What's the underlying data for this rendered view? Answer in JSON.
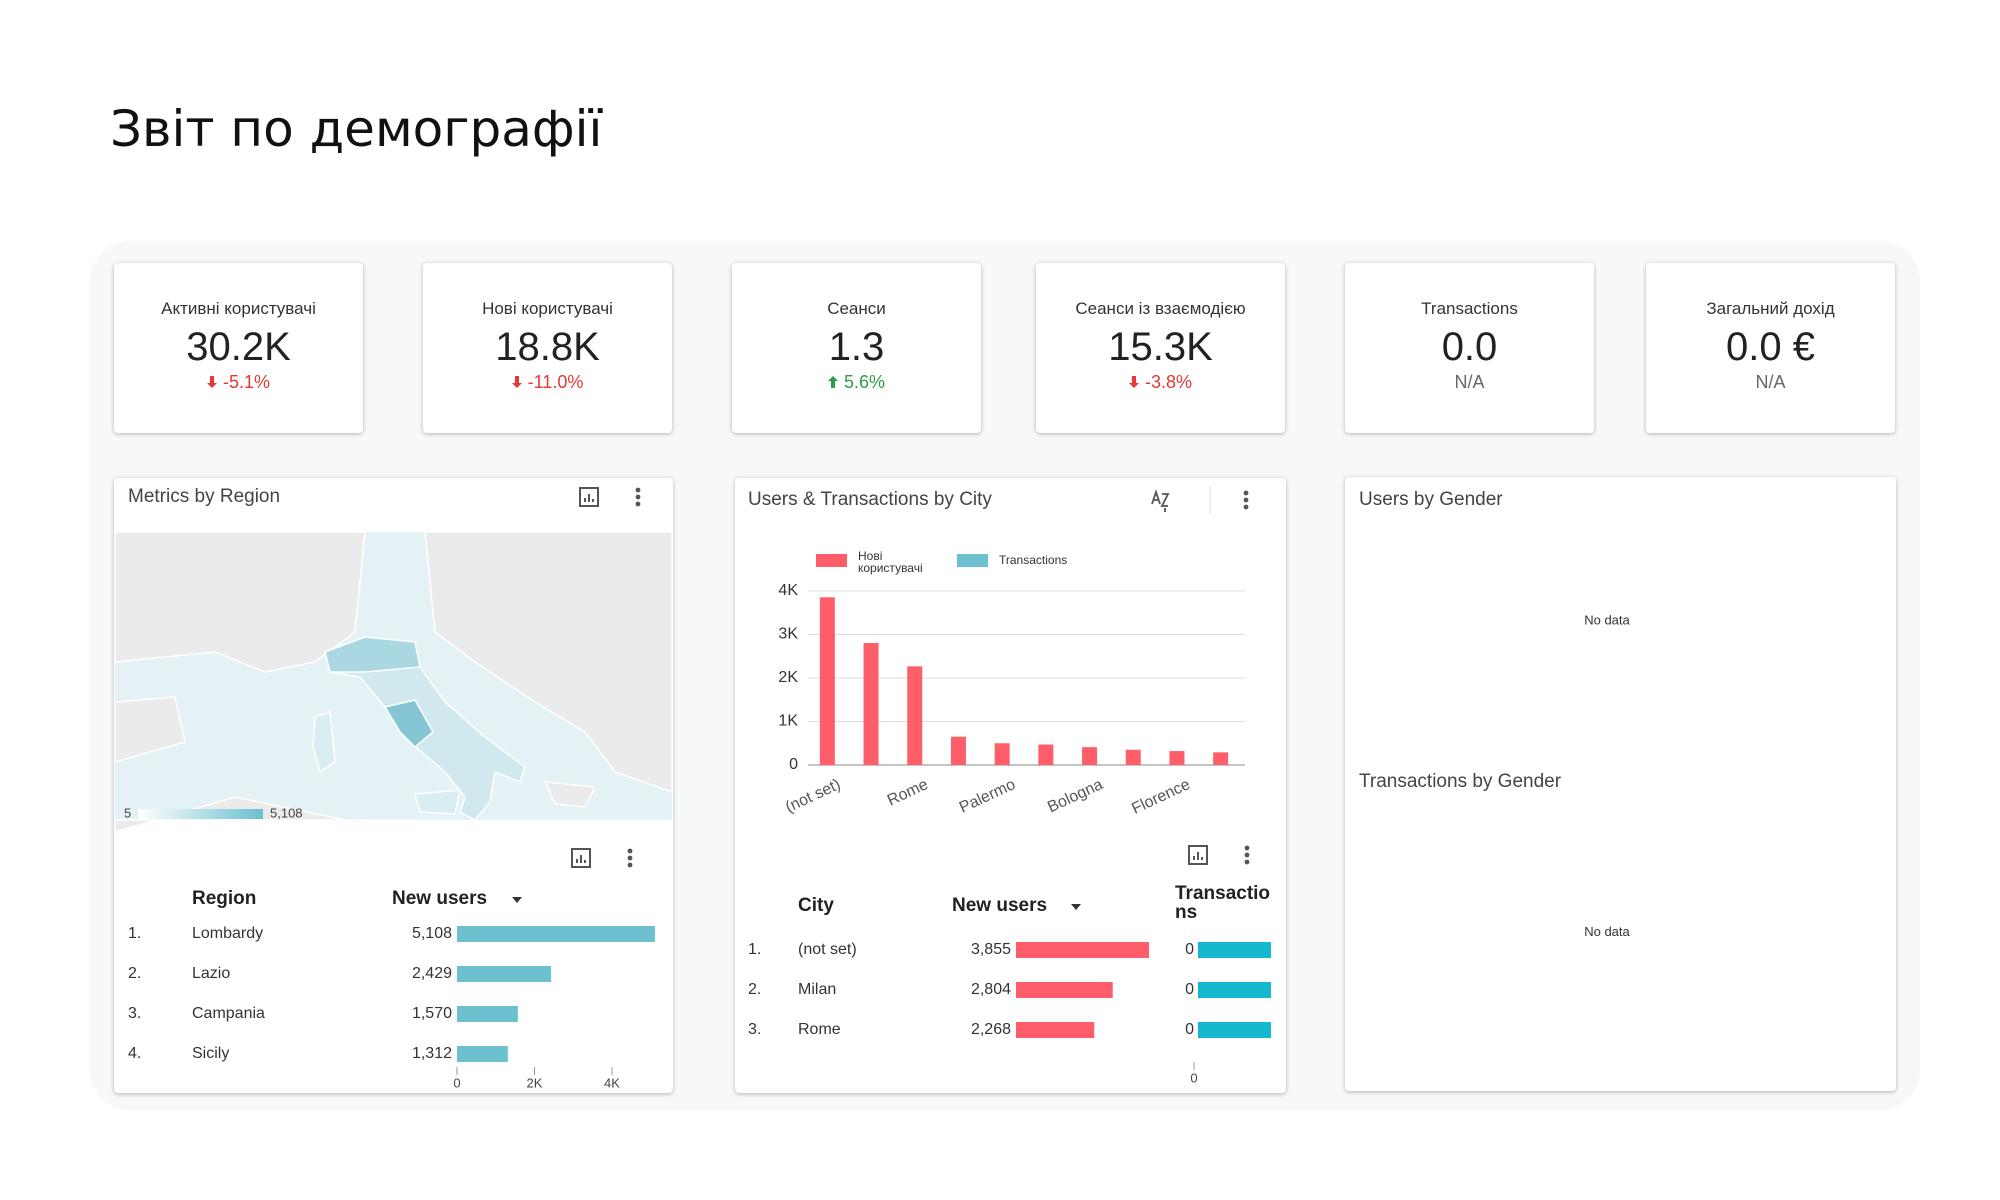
{
  "header": {
    "title": "Звіт по демографії"
  },
  "kpis": [
    {
      "label": "Активні користувачі",
      "value": "30.2K",
      "change": "-5.1%",
      "direction": "down"
    },
    {
      "label": "Нові користувачі",
      "value": "18.8K",
      "change": "-11.0%",
      "direction": "down"
    },
    {
      "label": "Сеанси",
      "value": "1.3",
      "change": "5.6%",
      "direction": "up"
    },
    {
      "label": "Сеанси із взаємодією",
      "value": "15.3K",
      "change": "-3.8%",
      "direction": "down"
    },
    {
      "label": "Transactions",
      "value": "0.0",
      "change": "N/A"
    },
    {
      "label": "Загальний дохід",
      "value": "0.0 €",
      "change": "N/A"
    }
  ],
  "region": {
    "title": "Metrics by Region",
    "map_scale": {
      "min": 5,
      "max": {
        "value": 5108,
        "label": "5,108"
      }
    },
    "table": {
      "columns": [
        "Region",
        "New users"
      ],
      "rows": [
        {
          "rank": "1.",
          "name": "Lombardy",
          "value": 5108,
          "value_label": "5,108"
        },
        {
          "rank": "2.",
          "name": "Lazio",
          "value": 2429,
          "value_label": "2,429"
        },
        {
          "rank": "3.",
          "name": "Campania",
          "value": 1570,
          "value_label": "1,570"
        },
        {
          "rank": "4.",
          "name": "Sicily",
          "value": 1312,
          "value_label": "1,312"
        }
      ],
      "xlim": [
        0,
        5108
      ],
      "xticks": [
        0,
        {
          "value": 2000,
          "label": "2K"
        },
        {
          "value": 4000,
          "label": "4K"
        }
      ],
      "color": "#6cc0d0"
    }
  },
  "city": {
    "title": "Users & Transactions by City",
    "chart": {
      "type": "bar",
      "categories": [
        "(not set)",
        null,
        "Rome",
        null,
        "Palermo",
        null,
        "Bologna",
        null,
        "Florence",
        null
      ],
      "series": [
        {
          "name": "Нові користувачі",
          "color": "#ff5d6a",
          "values": [
            3855,
            2804,
            2268,
            650,
            500,
            470,
            410,
            350,
            320,
            290
          ]
        },
        {
          "name": "Transactions",
          "color": "#6cc0d0",
          "values": [
            0,
            0,
            0,
            0,
            0,
            0,
            0,
            0,
            0,
            0
          ]
        }
      ],
      "ylim": [
        0,
        4000
      ],
      "yticks": [
        0,
        {
          "value": 1000,
          "label": "1K"
        },
        {
          "value": 2000,
          "label": "2K"
        },
        {
          "value": 3000,
          "label": "3K"
        },
        {
          "value": 4000,
          "label": "4K"
        }
      ],
      "grid": true
    },
    "table": {
      "columns": [
        "City",
        "New users",
        "Transactions"
      ],
      "rows": [
        {
          "rank": "1.",
          "name": "(not set)",
          "value": 3855,
          "value_label": "3,855",
          "transactions": 0
        },
        {
          "rank": "2.",
          "name": "Milan",
          "value": 2804,
          "value_label": "2,804",
          "transactions": 0
        },
        {
          "rank": "3.",
          "name": "Rome",
          "value": 2268,
          "value_label": "2,268",
          "transactions": 0
        }
      ],
      "xlim": [
        0,
        3855
      ],
      "transactions_ticks": [
        0
      ],
      "color": "#ff5d6a",
      "transactions_color": "#13b8cc"
    }
  },
  "gender": {
    "panels": [
      {
        "title": "Users by Gender",
        "message": "No data"
      },
      {
        "title": "Transactions by Gender",
        "message": "No data"
      }
    ]
  }
}
